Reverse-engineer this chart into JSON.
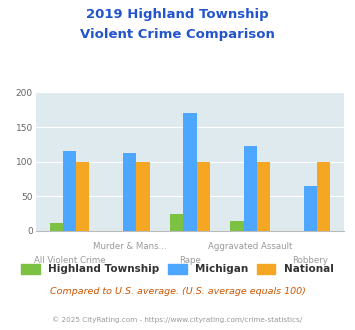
{
  "title_line1": "2019 Highland Township",
  "title_line2": "Violent Crime Comparison",
  "categories": [
    "All Violent Crime",
    "Murder & Mans...",
    "Rape",
    "Aggravated Assault",
    "Robbery"
  ],
  "cat_labels_row1": [
    "",
    "Murder & Mans...",
    "",
    "Aggravated Assault",
    ""
  ],
  "cat_labels_row2": [
    "All Violent Crime",
    "",
    "Rape",
    "",
    "Robbery"
  ],
  "highland": [
    12,
    0,
    25,
    14,
    0
  ],
  "michigan": [
    116,
    112,
    170,
    123,
    65
  ],
  "national": [
    100,
    100,
    100,
    100,
    100
  ],
  "highland_color": "#7cc142",
  "michigan_color": "#4da6ff",
  "national_color": "#f5a623",
  "title_color": "#2255cc",
  "bg_color": "#deeaee",
  "ylim": [
    0,
    200
  ],
  "yticks": [
    0,
    50,
    100,
    150,
    200
  ],
  "legend_labels": [
    "Highland Township",
    "Michigan",
    "National"
  ],
  "note": "Compared to U.S. average. (U.S. average equals 100)",
  "footer": "© 2025 CityRating.com - https://www.cityrating.com/crime-statistics/",
  "bar_width": 0.22
}
